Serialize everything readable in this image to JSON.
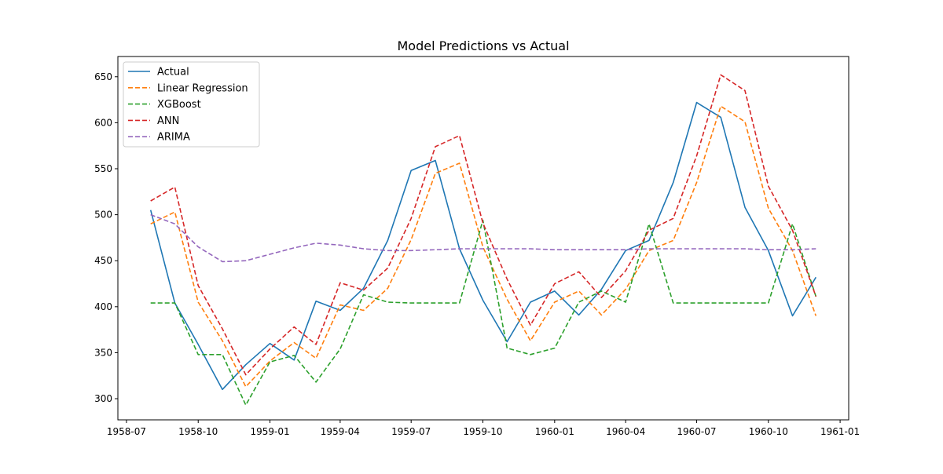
{
  "chart_data": {
    "type": "line",
    "title": "Model Predictions vs Actual",
    "xlabel": "",
    "ylabel": "",
    "x": [
      "1958-08",
      "1958-09",
      "1958-10",
      "1958-11",
      "1958-12",
      "1959-01",
      "1959-02",
      "1959-03",
      "1959-04",
      "1959-05",
      "1959-06",
      "1959-07",
      "1959-08",
      "1959-09",
      "1959-10",
      "1959-11",
      "1959-12",
      "1960-01",
      "1960-02",
      "1960-03",
      "1960-04",
      "1960-05",
      "1960-06",
      "1960-07",
      "1960-08",
      "1960-09",
      "1960-10",
      "1960-11",
      "1960-12"
    ],
    "xlim": [
      "1958-06-20",
      "1961-01-12"
    ],
    "ylim": [
      277,
      672
    ],
    "x_ticks": [
      "1958-07",
      "1958-10",
      "1959-01",
      "1959-04",
      "1959-07",
      "1959-10",
      "1960-01",
      "1960-04",
      "1960-07",
      "1960-10",
      "1961-01"
    ],
    "y_ticks": [
      300,
      350,
      400,
      450,
      500,
      550,
      600,
      650
    ],
    "grid": false,
    "legend_position": "upper-left",
    "series": [
      {
        "name": "Actual",
        "color": "#1f77b4",
        "style": "solid",
        "values": [
          505,
          404,
          359,
          310,
          337,
          360,
          342,
          406,
          396,
          420,
          472,
          548,
          559,
          463,
          407,
          362,
          405,
          417,
          391,
          419,
          461,
          472,
          535,
          622,
          606,
          508,
          461,
          390,
          432
        ]
      },
      {
        "name": "Linear Regression",
        "color": "#ff7f0e",
        "style": "dashed",
        "values": [
          490,
          503,
          405,
          363,
          313,
          341,
          361,
          344,
          402,
          396,
          420,
          473,
          545,
          556,
          465,
          408,
          363,
          405,
          417,
          391,
          419,
          461,
          472,
          535,
          618,
          601,
          507,
          461,
          390
        ]
      },
      {
        "name": "XGBoost",
        "color": "#2ca02c",
        "style": "dashed",
        "values": [
          404,
          404,
          348,
          348,
          293,
          340,
          347,
          318,
          354,
          413,
          405,
          404,
          404,
          404,
          494,
          355,
          348,
          355,
          405,
          417,
          405,
          490,
          404,
          404,
          404,
          404,
          404,
          490,
          411
        ]
      },
      {
        "name": "ANN",
        "color": "#d62728",
        "style": "dashed",
        "values": [
          515,
          530,
          423,
          376,
          326,
          354,
          378,
          359,
          426,
          418,
          442,
          496,
          574,
          586,
          491,
          430,
          380,
          425,
          438,
          410,
          439,
          483,
          496,
          564,
          652,
          635,
          531,
          483,
          411
        ]
      },
      {
        "name": "ARIMA",
        "color": "#9467bd",
        "style": "dashed",
        "values": [
          500,
          490,
          465,
          449,
          450,
          457,
          464,
          469,
          467,
          463,
          461,
          461,
          462,
          463,
          463,
          463,
          463,
          462,
          462,
          462,
          462,
          463,
          463,
          463,
          463,
          463,
          462,
          462,
          463
        ]
      }
    ]
  }
}
